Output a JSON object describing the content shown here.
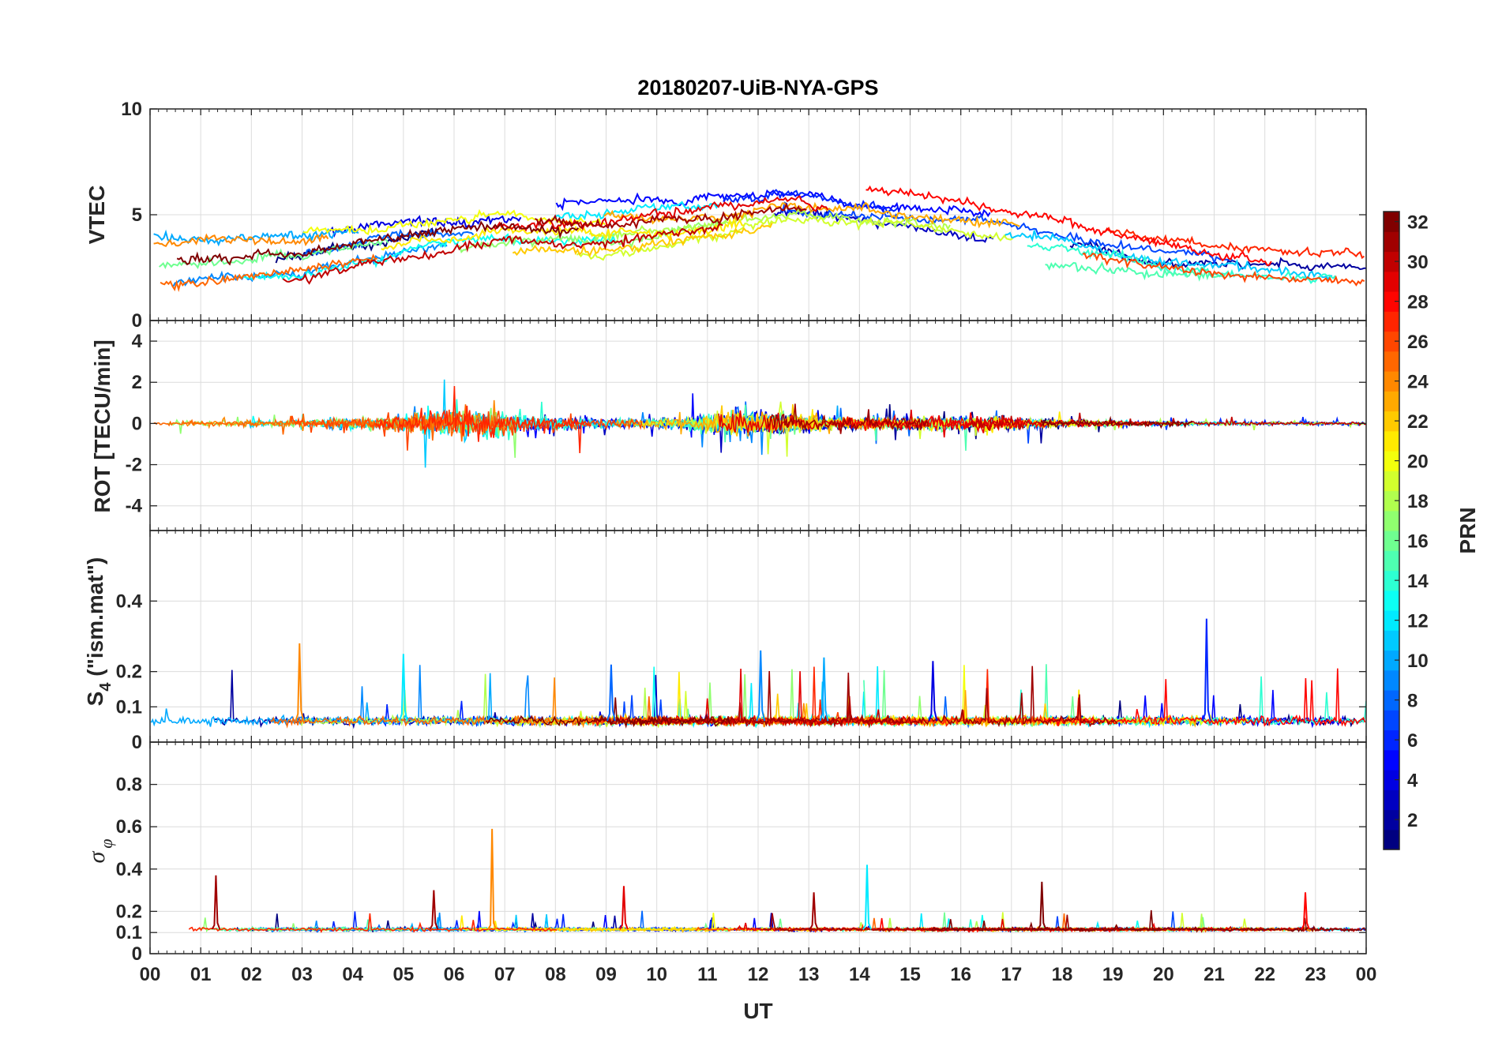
{
  "chart_data": {
    "type": "line",
    "title": "20180207-UiB-NYA-GPS",
    "xlabel": "UT",
    "x_ticks": [
      "00",
      "01",
      "02",
      "03",
      "04",
      "05",
      "06",
      "07",
      "08",
      "09",
      "10",
      "11",
      "12",
      "13",
      "14",
      "15",
      "16",
      "17",
      "18",
      "19",
      "20",
      "21",
      "22",
      "23",
      "00"
    ],
    "xlim_hours": [
      0,
      24
    ],
    "colorbar": {
      "label": "PRN",
      "range": [
        1,
        32
      ],
      "ticks": [
        "2",
        "4",
        "6",
        "8",
        "10",
        "12",
        "14",
        "16",
        "18",
        "20",
        "22",
        "24",
        "26",
        "28",
        "30",
        "32"
      ]
    },
    "panels": [
      {
        "id": "vtec",
        "ylabel": "VTEC",
        "ylim": [
          0,
          10
        ],
        "y_ticks": [
          "0",
          "5",
          "10"
        ],
        "y_tick_values": [
          0,
          5,
          10
        ],
        "series_style": "level",
        "level_profile": [
          [
            0,
            2.6
          ],
          [
            3,
            3.0
          ],
          [
            5,
            3.8
          ],
          [
            7,
            4.4
          ],
          [
            9,
            4.3
          ],
          [
            11,
            4.8
          ],
          [
            12.5,
            5.2
          ],
          [
            14,
            4.8
          ],
          [
            16,
            4.4
          ],
          [
            18,
            3.8
          ],
          [
            20,
            3.0
          ],
          [
            22,
            2.5
          ],
          [
            24,
            2.3
          ]
        ],
        "spread": 1.4,
        "noise": 0.5
      },
      {
        "id": "rot",
        "ylabel": "ROT [TECU/min]",
        "ylim": [
          -5.2,
          5
        ],
        "y_ticks": [
          "-4",
          "-2",
          "0",
          "2",
          "4"
        ],
        "y_tick_values": [
          -4,
          -2,
          0,
          2,
          4
        ],
        "series_style": "noise",
        "activity_profile": [
          [
            0,
            0.15
          ],
          [
            3,
            0.25
          ],
          [
            4.5,
            0.45
          ],
          [
            5.5,
            0.9
          ],
          [
            6.5,
            1.0
          ],
          [
            7.5,
            0.55
          ],
          [
            9,
            0.35
          ],
          [
            10.5,
            0.4
          ],
          [
            11.5,
            0.95
          ],
          [
            12.5,
            0.8
          ],
          [
            13.5,
            0.4
          ],
          [
            15.5,
            0.45
          ],
          [
            16.5,
            0.55
          ],
          [
            18,
            0.25
          ],
          [
            20,
            0.15
          ],
          [
            24,
            0.12
          ]
        ]
      },
      {
        "id": "s4",
        "ylabel": "S",
        "ylabel_sub": "4",
        "ylabel_rest": " (\"ism.mat\")",
        "ylim": [
          0,
          0.6
        ],
        "y_ticks": [
          "0",
          "0.1",
          "0.2",
          "0.4"
        ],
        "y_tick_values": [
          0,
          0.1,
          0.2,
          0.4
        ],
        "series_style": "index",
        "baseline": 0.06,
        "noise": 0.018,
        "spike_count": 26,
        "spike_max": 0.16,
        "peaks": [
          {
            "hour": 20.85,
            "value": 0.35,
            "prn": 6
          },
          {
            "hour": 2.95,
            "value": 0.28,
            "prn": 24
          },
          {
            "hour": 12.05,
            "value": 0.26,
            "prn": 9
          },
          {
            "hour": 13.3,
            "value": 0.24,
            "prn": 10
          },
          {
            "hour": 15.45,
            "value": 0.23,
            "prn": 4
          },
          {
            "hour": 5.0,
            "value": 0.25,
            "prn": 12
          },
          {
            "hour": 9.1,
            "value": 0.22,
            "prn": 8
          }
        ]
      },
      {
        "id": "sigma",
        "ylabel": "σ",
        "ylabel_sub": "φ",
        "ylim": [
          0,
          1
        ],
        "y_ticks": [
          "0",
          "0.1",
          "0.2",
          "0.4",
          "0.6",
          "0.8"
        ],
        "y_tick_values": [
          0,
          0.1,
          0.2,
          0.4,
          0.6,
          0.8
        ],
        "series_style": "index",
        "baseline": 0.115,
        "noise": 0.012,
        "spike_count": 30,
        "spike_max": 0.09,
        "peaks": [
          {
            "hour": 6.75,
            "value": 0.59,
            "prn": 24
          },
          {
            "hour": 14.15,
            "value": 0.42,
            "prn": 12
          },
          {
            "hour": 1.3,
            "value": 0.37,
            "prn": 31
          },
          {
            "hour": 17.6,
            "value": 0.34,
            "prn": 32
          },
          {
            "hour": 9.35,
            "value": 0.32,
            "prn": 29
          },
          {
            "hour": 13.1,
            "value": 0.29,
            "prn": 31
          },
          {
            "hour": 22.8,
            "value": 0.29,
            "prn": 28
          },
          {
            "hour": 5.6,
            "value": 0.3,
            "prn": 31
          }
        ]
      }
    ]
  }
}
